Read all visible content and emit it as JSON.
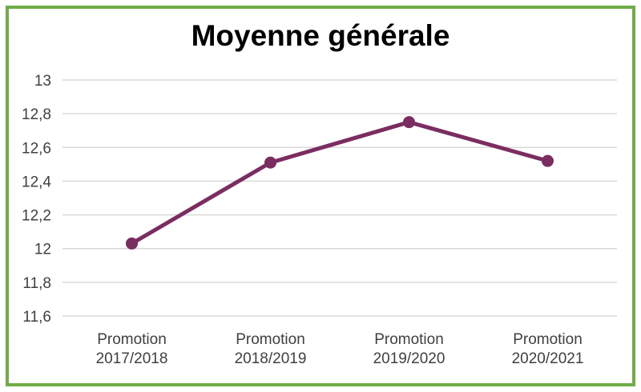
{
  "chart": {
    "title": "Moyenne générale",
    "colors": {
      "frame_border": "#70AD47",
      "line": "#7B2C60",
      "marker": "#7B2C60",
      "gridline": "#D9D9D9",
      "axis_text": "#404040",
      "title_text": "#000000",
      "background": "#FFFFFF"
    }
  },
  "chart_data": {
    "type": "line",
    "title": "Moyenne générale",
    "categories": [
      "Promotion 2017/2018",
      "Promotion 2018/2019",
      "Promotion 2019/2020",
      "Promotion 2020/2021"
    ],
    "categories_lines": [
      [
        "Promotion",
        "2017/2018"
      ],
      [
        "Promotion",
        "2018/2019"
      ],
      [
        "Promotion",
        "2019/2020"
      ],
      [
        "Promotion",
        "2020/2021"
      ]
    ],
    "series": [
      {
        "name": "Moyenne générale",
        "values": [
          12.03,
          12.51,
          12.75,
          12.52
        ]
      }
    ],
    "ylim": [
      11.6,
      13
    ],
    "y_tick_step": 0.2,
    "y_tick_labels": [
      "11,6",
      "11,8",
      "12",
      "12,2",
      "12,4",
      "12,6",
      "12,8",
      "13"
    ],
    "grid": true,
    "legend": "none",
    "marker": "circle",
    "line_width": 5,
    "marker_radius": 7.5
  }
}
